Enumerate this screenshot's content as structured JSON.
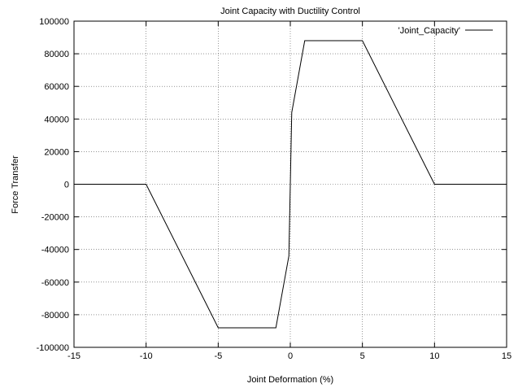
{
  "chart_data": {
    "type": "line",
    "title": "Joint Capacity with Ductility Control",
    "xlabel": "Joint Deformation (%)",
    "ylabel": "Force Transfer",
    "xlim": [
      -15,
      15
    ],
    "ylim": [
      -100000,
      100000
    ],
    "x_ticks": [
      -15,
      -10,
      -5,
      0,
      5,
      10,
      15
    ],
    "y_ticks": [
      -100000,
      -80000,
      -60000,
      -40000,
      -20000,
      0,
      20000,
      40000,
      60000,
      80000,
      100000
    ],
    "grid": true,
    "legend_position": "top-right",
    "series": [
      {
        "name": "'Joint_Capacity'",
        "color": "#000000",
        "x": [
          -15,
          -10,
          -5,
          -1,
          -0.1,
          0,
          0.1,
          1,
          5,
          10,
          15
        ],
        "y": [
          0,
          0,
          -88000,
          -88000,
          -44000,
          0,
          44000,
          88000,
          88000,
          0,
          0
        ]
      }
    ]
  }
}
